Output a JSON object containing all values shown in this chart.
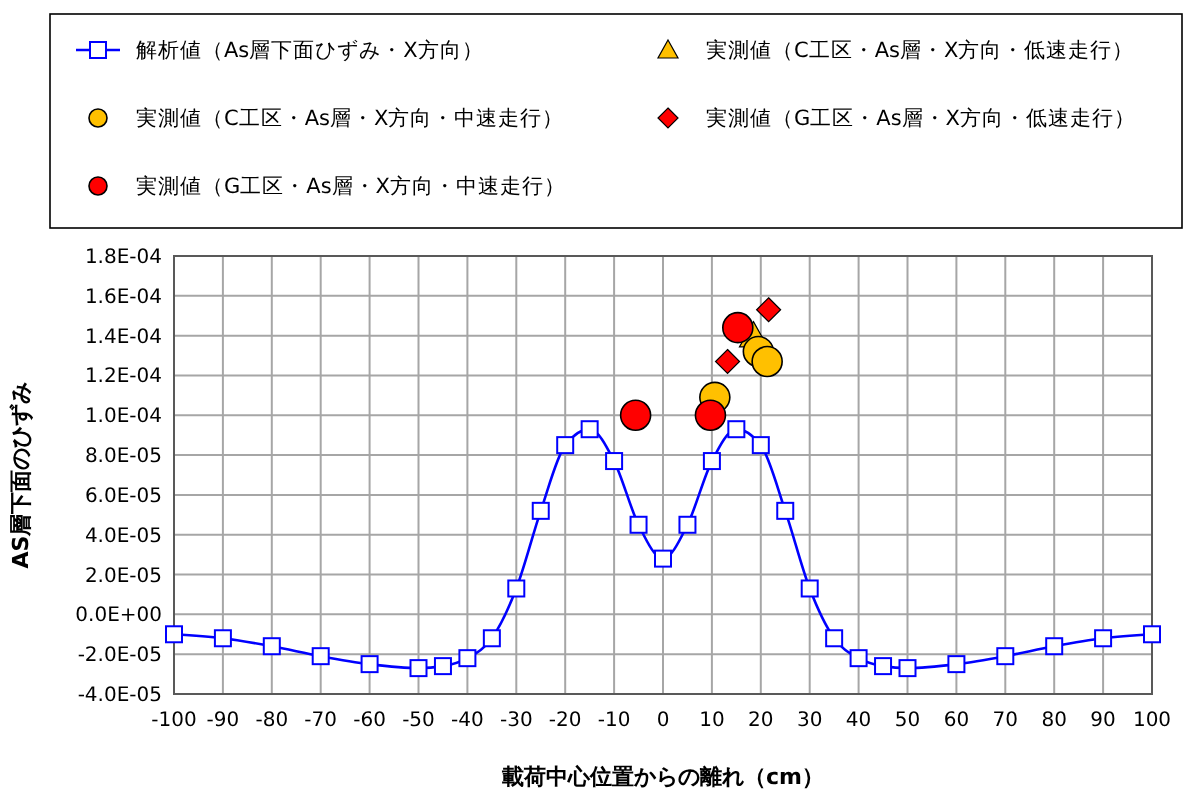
{
  "chart_data": {
    "type": "line",
    "xlabel": "載荷中心位置からの離れ（cm）",
    "ylabel": "AS層下面のひずみ",
    "xlim": [
      -100,
      100
    ],
    "xticks": [
      -100,
      -90,
      -80,
      -70,
      -60,
      -50,
      -40,
      -30,
      -20,
      -10,
      0,
      10,
      20,
      30,
      40,
      50,
      60,
      70,
      80,
      90,
      100
    ],
    "ylim": [
      -4e-05,
      0.00018
    ],
    "yticks": [
      {
        "value": -4e-05,
        "label": "-4.0E-05"
      },
      {
        "value": -2e-05,
        "label": "-2.0E-05"
      },
      {
        "value": 0,
        "label": "0.0E+00"
      },
      {
        "value": 2e-05,
        "label": "2.0E-05"
      },
      {
        "value": 4e-05,
        "label": "4.0E-05"
      },
      {
        "value": 6e-05,
        "label": "6.0E-05"
      },
      {
        "value": 8e-05,
        "label": "8.0E-05"
      },
      {
        "value": 0.0001,
        "label": "1.0E-04"
      },
      {
        "value": 0.00012,
        "label": "1.2E-04"
      },
      {
        "value": 0.00014,
        "label": "1.4E-04"
      },
      {
        "value": 0.00016,
        "label": "1.6E-04"
      },
      {
        "value": 0.00018,
        "label": "1.8E-04"
      }
    ],
    "grid": true,
    "legend": "top",
    "series": [
      {
        "name": "解析値（As層下面ひずみ・X方向）",
        "color": "#0000ff",
        "marker": "square",
        "x": [
          -100,
          -90,
          -80,
          -70,
          -60,
          -50,
          -45,
          -40,
          -35,
          -30,
          -25,
          -20,
          -15,
          -10,
          -5,
          0,
          5,
          10,
          15,
          20,
          25,
          30,
          35,
          40,
          45,
          50,
          60,
          70,
          80,
          90,
          100
        ],
        "values": [
          -1e-05,
          -1.2e-05,
          -1.6e-05,
          -2.1e-05,
          -2.5e-05,
          -2.7e-05,
          -2.6e-05,
          -2.2e-05,
          -1.2e-05,
          1.3e-05,
          5.2e-05,
          8.5e-05,
          9.3e-05,
          7.7e-05,
          4.5e-05,
          2.8e-05,
          4.5e-05,
          7.7e-05,
          9.3e-05,
          8.5e-05,
          5.2e-05,
          1.3e-05,
          -1.2e-05,
          -2.2e-05,
          -2.6e-05,
          -2.7e-05,
          -2.5e-05,
          -2.1e-05,
          -1.6e-05,
          -1.2e-05,
          -1e-05
        ]
      },
      {
        "name": "実測値（C工区・As層・X方向・低速走行）",
        "type": "scatter",
        "color": "#ffc000",
        "marker": "triangle",
        "x": [
          18.5
        ],
        "values": [
          0.00014
        ]
      },
      {
        "name": "実測値（C工区・As層・X方向・中速走行）",
        "type": "scatter",
        "color": "#ffc000",
        "marker": "circle",
        "x": [
          10.6,
          19.5,
          21.3
        ],
        "values": [
          0.000109,
          0.000132,
          0.000127
        ]
      },
      {
        "name": "実測値（G工区・As層・X方向・低速走行）",
        "type": "scatter",
        "color": "#ff0000",
        "marker": "diamond",
        "x": [
          13.2,
          21.6
        ],
        "values": [
          0.000127,
          0.000153
        ]
      },
      {
        "name": "実測値（G工区・As層・X方向・中速走行）",
        "type": "scatter",
        "color": "#ff0000",
        "marker": "circle",
        "x": [
          -5.6,
          9.7,
          15.3
        ],
        "values": [
          0.0001,
          0.0001,
          0.000144
        ]
      }
    ]
  }
}
